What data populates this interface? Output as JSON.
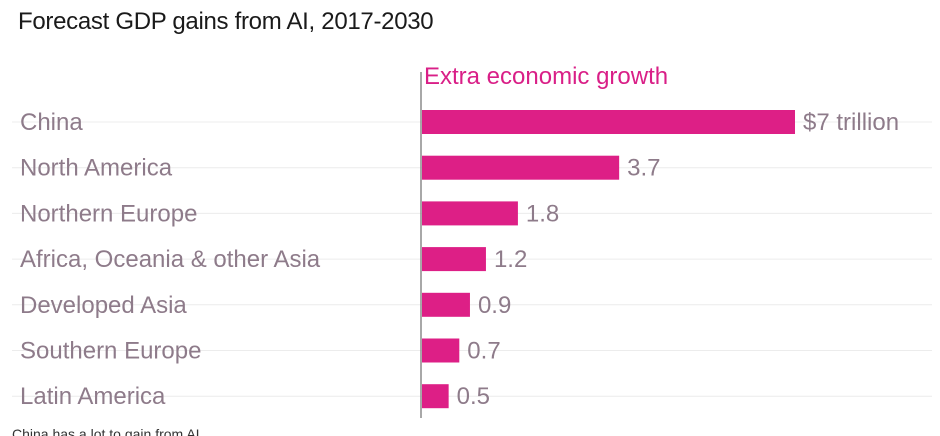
{
  "chart_data": {
    "type": "bar",
    "orientation": "horizontal",
    "title": "Forecast GDP gains from AI, 2017-2030",
    "series_label": "Extra economic growth",
    "categories": [
      "China",
      "North America",
      "Northern Europe",
      "Africa, Oceania & other Asia",
      "Developed Asia",
      "Southern Europe",
      "Latin America"
    ],
    "values": [
      7,
      3.7,
      1.8,
      1.2,
      0.9,
      0.7,
      0.5
    ],
    "value_labels": [
      "$7 trillion",
      "3.7",
      "1.8",
      "1.2",
      "0.9",
      "0.7",
      "0.5"
    ],
    "xlim": [
      0,
      7
    ],
    "grid": true,
    "colors": {
      "bar": "#dd1f86",
      "label": "#8e7b8a",
      "header": "#d91f87",
      "grid": "#ececec",
      "axis": "#8c8c8c"
    }
  },
  "footer": {
    "text": "China has a lot to gain from AI"
  }
}
